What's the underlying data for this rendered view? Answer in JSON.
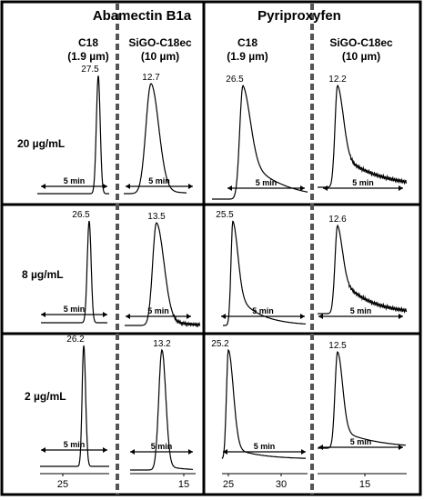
{
  "chart_data": {
    "type": "line",
    "compounds": [
      "Abamectin B1a",
      "Pyriproxyfen"
    ],
    "columns": [
      {
        "name": "C18",
        "particle": "(1.9 µm)"
      },
      {
        "name": "SiGO-C18ec",
        "particle": "(10 µm)"
      }
    ],
    "concentrations": [
      "20 µg/mL",
      "8 µg/mL",
      "2 µg/mL"
    ],
    "scale_bar_label": "5 min",
    "x_ticks": [
      {
        "labels": [
          "25"
        ]
      },
      {
        "labels": [
          "15"
        ]
      },
      {
        "labels": [
          "25",
          "30"
        ]
      },
      {
        "labels": [
          "15"
        ]
      }
    ],
    "peaks": [
      {
        "compound": "Abamectin B1a",
        "column": "C18",
        "concentration": "20 µg/mL",
        "retention_time": "27.5"
      },
      {
        "compound": "Abamectin B1a",
        "column": "SiGO-C18ec",
        "concentration": "20 µg/mL",
        "retention_time": "12.7"
      },
      {
        "compound": "Pyriproxyfen",
        "column": "C18",
        "concentration": "20 µg/mL",
        "retention_time": "26.5"
      },
      {
        "compound": "Pyriproxyfen",
        "column": "SiGO-C18ec",
        "concentration": "20 µg/mL",
        "retention_time": "12.2"
      },
      {
        "compound": "Abamectin B1a",
        "column": "C18",
        "concentration": "8 µg/mL",
        "retention_time": "26.5"
      },
      {
        "compound": "Abamectin B1a",
        "column": "SiGO-C18ec",
        "concentration": "8 µg/mL",
        "retention_time": "13.5"
      },
      {
        "compound": "Pyriproxyfen",
        "column": "C18",
        "concentration": "8 µg/mL",
        "retention_time": "25.5"
      },
      {
        "compound": "Pyriproxyfen",
        "column": "SiGO-C18ec",
        "concentration": "8 µg/mL",
        "retention_time": "12.6"
      },
      {
        "compound": "Abamectin B1a",
        "column": "C18",
        "concentration": "2 µg/mL",
        "retention_time": "26.2"
      },
      {
        "compound": "Abamectin B1a",
        "column": "SiGO-C18ec",
        "concentration": "2 µg/mL",
        "retention_time": "13.2"
      },
      {
        "compound": "Pyriproxyfen",
        "column": "C18",
        "concentration": "2 µg/mL",
        "retention_time": "25.2"
      },
      {
        "compound": "Pyriproxyfen",
        "column": "SiGO-C18ec",
        "concentration": "2 µg/mL",
        "retention_time": "12.5"
      }
    ]
  }
}
